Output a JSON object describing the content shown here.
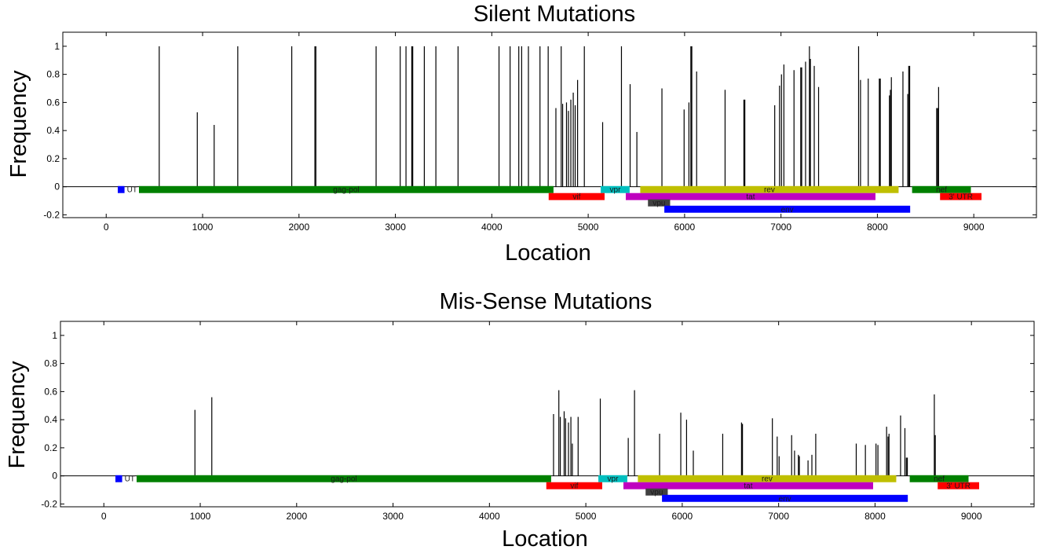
{
  "chart_data": [
    {
      "type": "bar",
      "title": "Silent Mutations",
      "xlabel": "Location",
      "ylabel": "Frequency",
      "xlim": [
        -450,
        9650
      ],
      "ylim": [
        -0.22,
        1.1
      ],
      "xticks": [
        0,
        1000,
        2000,
        3000,
        4000,
        5000,
        6000,
        7000,
        8000,
        9000
      ],
      "yticks": [
        -0.2,
        0,
        0.2,
        0.4,
        0.6,
        0.8,
        1
      ],
      "ytick_labels": [
        "-0.2",
        "0",
        "0.2",
        "0.4",
        "0.6",
        "0.8",
        "1"
      ],
      "stems": [
        {
          "x": 550,
          "y": 1.0
        },
        {
          "x": 945,
          "y": 0.53
        },
        {
          "x": 1120,
          "y": 0.44
        },
        {
          "x": 1365,
          "y": 1.0
        },
        {
          "x": 1925,
          "y": 1.0
        },
        {
          "x": 2165,
          "y": 1.0
        },
        {
          "x": 2175,
          "y": 1.0
        },
        {
          "x": 2800,
          "y": 1.0
        },
        {
          "x": 3050,
          "y": 1.0
        },
        {
          "x": 3110,
          "y": 1.0
        },
        {
          "x": 3170,
          "y": 1.0
        },
        {
          "x": 3180,
          "y": 1.0
        },
        {
          "x": 3300,
          "y": 1.0
        },
        {
          "x": 3420,
          "y": 1.0
        },
        {
          "x": 3650,
          "y": 1.0
        },
        {
          "x": 4075,
          "y": 1.0
        },
        {
          "x": 4190,
          "y": 1.0
        },
        {
          "x": 4280,
          "y": 1.0
        },
        {
          "x": 4310,
          "y": 1.0
        },
        {
          "x": 4380,
          "y": 1.0
        },
        {
          "x": 4500,
          "y": 1.0
        },
        {
          "x": 4585,
          "y": 1.0
        },
        {
          "x": 4665,
          "y": 0.56
        },
        {
          "x": 4720,
          "y": 1.0
        },
        {
          "x": 4735,
          "y": 0.59
        },
        {
          "x": 4775,
          "y": 0.6
        },
        {
          "x": 4795,
          "y": 0.54
        },
        {
          "x": 4820,
          "y": 0.62
        },
        {
          "x": 4845,
          "y": 0.67
        },
        {
          "x": 4865,
          "y": 0.58
        },
        {
          "x": 4890,
          "y": 0.76
        },
        {
          "x": 4960,
          "y": 1.0
        },
        {
          "x": 5150,
          "y": 0.46
        },
        {
          "x": 5345,
          "y": 1.0
        },
        {
          "x": 5435,
          "y": 0.73
        },
        {
          "x": 5505,
          "y": 0.39
        },
        {
          "x": 5765,
          "y": 0.7
        },
        {
          "x": 5995,
          "y": 0.55
        },
        {
          "x": 6045,
          "y": 0.6
        },
        {
          "x": 6065,
          "y": 1.0
        },
        {
          "x": 6075,
          "y": 1.0
        },
        {
          "x": 6125,
          "y": 0.82
        },
        {
          "x": 6420,
          "y": 0.69
        },
        {
          "x": 6615,
          "y": 0.62
        },
        {
          "x": 6625,
          "y": 0.62
        },
        {
          "x": 6935,
          "y": 0.58
        },
        {
          "x": 6985,
          "y": 0.72
        },
        {
          "x": 7005,
          "y": 0.8
        },
        {
          "x": 7030,
          "y": 0.87
        },
        {
          "x": 7135,
          "y": 0.83
        },
        {
          "x": 7205,
          "y": 0.85
        },
        {
          "x": 7215,
          "y": 0.85
        },
        {
          "x": 7255,
          "y": 0.89
        },
        {
          "x": 7295,
          "y": 1.0
        },
        {
          "x": 7305,
          "y": 0.91
        },
        {
          "x": 7345,
          "y": 0.86
        },
        {
          "x": 7390,
          "y": 0.71
        },
        {
          "x": 7805,
          "y": 1.0
        },
        {
          "x": 7825,
          "y": 0.76
        },
        {
          "x": 7905,
          "y": 0.77
        },
        {
          "x": 8020,
          "y": 0.77
        },
        {
          "x": 8030,
          "y": 0.77
        },
        {
          "x": 8125,
          "y": 0.65
        },
        {
          "x": 8135,
          "y": 0.69
        },
        {
          "x": 8145,
          "y": 0.78
        },
        {
          "x": 8265,
          "y": 0.82
        },
        {
          "x": 8315,
          "y": 0.66
        },
        {
          "x": 8325,
          "y": 0.86
        },
        {
          "x": 8335,
          "y": 0.86
        },
        {
          "x": 8615,
          "y": 0.56
        },
        {
          "x": 8625,
          "y": 0.56
        },
        {
          "x": 8635,
          "y": 0.71
        }
      ],
      "genes": [
        {
          "name": "UT",
          "start": 120,
          "end": 190,
          "y": -0.02,
          "color": "#0000ff"
        },
        {
          "name": "gag-pol",
          "start": 340,
          "end": 4640,
          "y": -0.02,
          "color": "#008000"
        },
        {
          "name": "vpr",
          "start": 5130,
          "end": 5430,
          "y": -0.02,
          "color": "#00bfbf"
        },
        {
          "name": "rev",
          "start": 5540,
          "end": 8220,
          "y": -0.02,
          "color": "#bfbf00"
        },
        {
          "name": "nef",
          "start": 8360,
          "end": 8970,
          "y": -0.02,
          "color": "#008000"
        },
        {
          "name": "vif",
          "start": 4590,
          "end": 5170,
          "y": -0.07,
          "color": "#ff0000"
        },
        {
          "name": "tat",
          "start": 5390,
          "end": 7980,
          "y": -0.07,
          "color": "#bf00bf"
        },
        {
          "name": "3' UTR",
          "start": 8650,
          "end": 9080,
          "y": -0.07,
          "color": "#ff0000"
        },
        {
          "name": "vpu",
          "start": 5620,
          "end": 5850,
          "y": -0.115,
          "color": "#404040"
        },
        {
          "name": "env",
          "start": 5790,
          "end": 8340,
          "y": -0.16,
          "color": "#0000ff"
        }
      ]
    },
    {
      "type": "bar",
      "title": "Mis-Sense Mutations",
      "xlabel": "Location",
      "ylabel": "Frequency",
      "xlim": [
        -450,
        9650
      ],
      "ylim": [
        -0.22,
        1.1
      ],
      "xticks": [
        0,
        1000,
        2000,
        3000,
        4000,
        5000,
        6000,
        7000,
        8000,
        9000
      ],
      "yticks": [
        -0.2,
        0,
        0.2,
        0.4,
        0.6,
        0.8,
        1
      ],
      "ytick_labels": [
        "-0.2",
        "0",
        "0.2",
        "0.4",
        "0.6",
        "0.8",
        "1"
      ],
      "stems": [
        {
          "x": 945,
          "y": 0.47
        },
        {
          "x": 1120,
          "y": 0.56
        },
        {
          "x": 4665,
          "y": 0.44
        },
        {
          "x": 4720,
          "y": 0.61
        },
        {
          "x": 4735,
          "y": 0.42
        },
        {
          "x": 4775,
          "y": 0.46
        },
        {
          "x": 4790,
          "y": 0.41
        },
        {
          "x": 4820,
          "y": 0.38
        },
        {
          "x": 4845,
          "y": 0.42
        },
        {
          "x": 4860,
          "y": 0.23
        },
        {
          "x": 4920,
          "y": 0.42
        },
        {
          "x": 5150,
          "y": 0.55
        },
        {
          "x": 5440,
          "y": 0.27
        },
        {
          "x": 5505,
          "y": 0.61
        },
        {
          "x": 5765,
          "y": 0.3
        },
        {
          "x": 5985,
          "y": 0.45
        },
        {
          "x": 6045,
          "y": 0.4
        },
        {
          "x": 6115,
          "y": 0.18
        },
        {
          "x": 6420,
          "y": 0.3
        },
        {
          "x": 6615,
          "y": 0.38
        },
        {
          "x": 6625,
          "y": 0.37
        },
        {
          "x": 6935,
          "y": 0.41
        },
        {
          "x": 6985,
          "y": 0.28
        },
        {
          "x": 7005,
          "y": 0.14
        },
        {
          "x": 7135,
          "y": 0.29
        },
        {
          "x": 7165,
          "y": 0.18
        },
        {
          "x": 7205,
          "y": 0.15
        },
        {
          "x": 7215,
          "y": 0.14
        },
        {
          "x": 7305,
          "y": 0.11
        },
        {
          "x": 7345,
          "y": 0.15
        },
        {
          "x": 7385,
          "y": 0.3
        },
        {
          "x": 7805,
          "y": 0.23
        },
        {
          "x": 7900,
          "y": 0.22
        },
        {
          "x": 8010,
          "y": 0.23
        },
        {
          "x": 8030,
          "y": 0.22
        },
        {
          "x": 8120,
          "y": 0.35
        },
        {
          "x": 8135,
          "y": 0.28
        },
        {
          "x": 8145,
          "y": 0.3
        },
        {
          "x": 8265,
          "y": 0.43
        },
        {
          "x": 8310,
          "y": 0.34
        },
        {
          "x": 8325,
          "y": 0.13
        },
        {
          "x": 8335,
          "y": 0.13
        },
        {
          "x": 8615,
          "y": 0.58
        },
        {
          "x": 8625,
          "y": 0.29
        }
      ],
      "genes": [
        {
          "name": "UT",
          "start": 120,
          "end": 190,
          "y": -0.02,
          "color": "#0000ff"
        },
        {
          "name": "gag-pol",
          "start": 340,
          "end": 4640,
          "y": -0.02,
          "color": "#008000"
        },
        {
          "name": "vpr",
          "start": 5130,
          "end": 5430,
          "y": -0.02,
          "color": "#00bfbf"
        },
        {
          "name": "rev",
          "start": 5540,
          "end": 8220,
          "y": -0.02,
          "color": "#bfbf00"
        },
        {
          "name": "nef",
          "start": 8360,
          "end": 8970,
          "y": -0.02,
          "color": "#008000"
        },
        {
          "name": "vif",
          "start": 4590,
          "end": 5170,
          "y": -0.07,
          "color": "#ff0000"
        },
        {
          "name": "tat",
          "start": 5390,
          "end": 7980,
          "y": -0.07,
          "color": "#bf00bf"
        },
        {
          "name": "3' UTR",
          "start": 8650,
          "end": 9080,
          "y": -0.07,
          "color": "#ff0000"
        },
        {
          "name": "vpu",
          "start": 5620,
          "end": 5850,
          "y": -0.115,
          "color": "#404040"
        },
        {
          "name": "env",
          "start": 5790,
          "end": 8340,
          "y": -0.16,
          "color": "#0000ff"
        }
      ]
    }
  ]
}
